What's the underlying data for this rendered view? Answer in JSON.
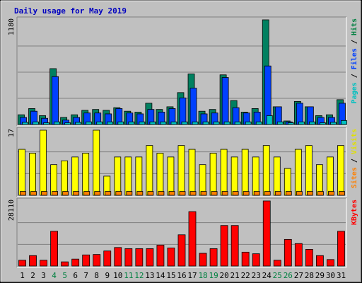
{
  "chart_data": [
    {
      "type": "bar",
      "title": "Daily usage for May 2019",
      "panel": "hits",
      "ymax_label": "1180",
      "ylim": [
        0,
        1180
      ],
      "right_label_parts": [
        {
          "text": "Pages",
          "color": "#00c0c0"
        },
        {
          "text": " / ",
          "color": "#000000"
        },
        {
          "text": "Files",
          "color": "#0040ff"
        },
        {
          "text": " / ",
          "color": "#000000"
        },
        {
          "text": "Hits",
          "color": "#008040"
        }
      ],
      "categories": [
        "1",
        "2",
        "3",
        "4",
        "5",
        "6",
        "7",
        "8",
        "9",
        "10",
        "11",
        "12",
        "13",
        "14",
        "15",
        "16",
        "17",
        "18",
        "19",
        "20",
        "21",
        "22",
        "23",
        "24",
        "25",
        "26",
        "27",
        "28",
        "29",
        "30",
        "31"
      ],
      "weekend_days": [
        "4",
        "5",
        "11",
        "12",
        "18",
        "19",
        "25",
        "26"
      ],
      "series": [
        {
          "name": "Hits",
          "color": "#008060",
          "values": [
            110,
            180,
            100,
            630,
            80,
            110,
            160,
            170,
            160,
            190,
            150,
            140,
            240,
            170,
            200,
            360,
            570,
            150,
            170,
            560,
            270,
            140,
            180,
            1180,
            200,
            40,
            260,
            200,
            100,
            110,
            280
          ]
        },
        {
          "name": "Files",
          "color": "#0040ff",
          "values": [
            80,
            150,
            70,
            540,
            50,
            80,
            130,
            130,
            120,
            180,
            130,
            120,
            170,
            140,
            180,
            300,
            410,
            120,
            130,
            530,
            190,
            130,
            140,
            660,
            200,
            30,
            240,
            200,
            80,
            80,
            240
          ]
        },
        {
          "name": "Pages",
          "color": "#00c0c0",
          "values": [
            25,
            30,
            20,
            30,
            20,
            25,
            30,
            30,
            30,
            30,
            30,
            30,
            30,
            30,
            30,
            30,
            30,
            30,
            30,
            30,
            30,
            30,
            30,
            100,
            30,
            20,
            30,
            30,
            20,
            25,
            45
          ]
        }
      ]
    },
    {
      "type": "bar",
      "panel": "visits",
      "ymax_label": "17",
      "ylim": [
        0,
        17
      ],
      "right_label_parts": [
        {
          "text": "Sites",
          "color": "#ff8000"
        },
        {
          "text": " / ",
          "color": "#000000"
        },
        {
          "text": "Visits",
          "color": "#e0e000"
        }
      ],
      "series": [
        {
          "name": "Visits",
          "color": "#ffff00",
          "values": [
            12,
            11,
            17,
            8,
            9,
            10,
            11,
            17,
            5,
            10,
            10,
            10,
            13,
            11,
            10,
            13,
            12,
            8,
            11,
            12,
            10,
            12,
            10,
            13,
            10,
            7,
            12,
            13,
            8,
            10,
            13
          ]
        },
        {
          "name": "Sites",
          "color": "#ff8000",
          "values": [
            1,
            1,
            1,
            1,
            1,
            1,
            1,
            1,
            1,
            1,
            1,
            1,
            1,
            1,
            1,
            1,
            1,
            1,
            1,
            1,
            1,
            1,
            1,
            1,
            1,
            1,
            1,
            1,
            1,
            1,
            1
          ]
        }
      ]
    },
    {
      "type": "bar",
      "panel": "kbytes",
      "ymax_label": "28110",
      "ylim": [
        0,
        28110
      ],
      "right_label_parts": [
        {
          "text": "KBytes",
          "color": "#ff0000"
        }
      ],
      "series": [
        {
          "name": "KBytes",
          "color": "#ff0000",
          "values": [
            2500,
            4500,
            2500,
            15000,
            1800,
            3000,
            4800,
            5000,
            6500,
            8000,
            7500,
            7500,
            7500,
            9000,
            7800,
            13500,
            23500,
            5500,
            7500,
            17500,
            17500,
            6000,
            5300,
            28110,
            2500,
            11500,
            9700,
            7200,
            4500,
            2800,
            15000
          ]
        }
      ]
    }
  ]
}
